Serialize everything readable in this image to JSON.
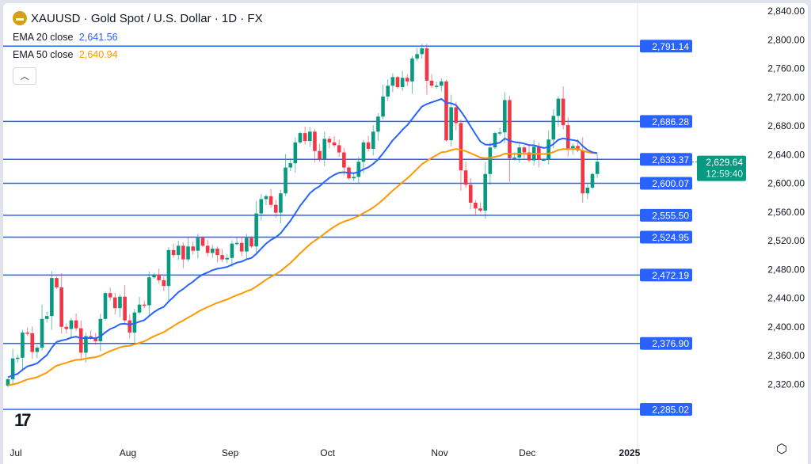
{
  "header": {
    "symbol_title": "XAUUSD · Gold Spot / U.S. Dollar · 1D · FX",
    "ema20_label": "EMA 20 close",
    "ema20_value": "2,641.56",
    "ema50_label": "EMA 50 close",
    "ema50_value": "2,640.94",
    "collapse_icon": "chevron-up-icon"
  },
  "logo": "TV",
  "colors": {
    "up": "#089981",
    "down": "#f23645",
    "ema20": "#2962ff",
    "ema50": "#ff9800",
    "level": "#2962ff",
    "price_label": "#089981"
  },
  "chart_data": {
    "type": "candlestick",
    "title": "XAUUSD · Gold Spot / U.S. Dollar · 1D · FX",
    "ylim": [
      2255,
      2850
    ],
    "y_ticks": [
      "2,840.00",
      "2,800.00",
      "2,760.00",
      "2,720.00",
      "2,680.00",
      "2,640.00",
      "2,600.00",
      "2,560.00",
      "2,520.00",
      "2,480.00",
      "2,440.00",
      "2,400.00",
      "2,360.00",
      "2,320.00"
    ],
    "y_tick_values": [
      2840,
      2800,
      2760,
      2720,
      2680,
      2640,
      2600,
      2560,
      2520,
      2480,
      2440,
      2400,
      2360,
      2320
    ],
    "x_ticks": [
      {
        "label": "Jul",
        "bar": 0
      },
      {
        "label": "Aug",
        "bar": 23
      },
      {
        "label": "Sep",
        "bar": 44
      },
      {
        "label": "Oct",
        "bar": 64
      },
      {
        "label": "Nov",
        "bar": 87
      },
      {
        "label": "Dec",
        "bar": 105
      },
      {
        "label": "2025",
        "bar": 126
      }
    ],
    "closes": [
      2327,
      2356,
      2357,
      2392,
      2391,
      2365,
      2371,
      2411,
      2415,
      2468,
      2455,
      2400,
      2397,
      2409,
      2398,
      2364,
      2387,
      2385,
      2380,
      2411,
      2447,
      2441,
      2426,
      2442,
      2409,
      2392,
      2420,
      2431,
      2430,
      2469,
      2473,
      2465,
      2457,
      2507,
      2500,
      2513,
      2494,
      2512,
      2506,
      2524,
      2513,
      2503,
      2509,
      2500,
      2494,
      2496,
      2516,
      2517,
      2505,
      2524,
      2512,
      2558,
      2578,
      2582,
      2570,
      2559,
      2586,
      2622,
      2628,
      2657,
      2670,
      2659,
      2672,
      2645,
      2634,
      2662,
      2657,
      2653,
      2643,
      2622,
      2607,
      2609,
      2630,
      2657,
      2648,
      2672,
      2693,
      2721,
      2736,
      2748,
      2734,
      2747,
      2742,
      2774,
      2780,
      2788,
      2743,
      2736,
      2736,
      2742,
      2660,
      2706,
      2684,
      2618,
      2598,
      2573,
      2565,
      2562,
      2613,
      2650,
      2670,
      2671,
      2716,
      2635,
      2636,
      2650,
      2643,
      2632,
      2651,
      2633,
      2633,
      2661,
      2694,
      2718,
      2681,
      2648,
      2652,
      2646,
      2586,
      2594,
      2613,
      2630
    ],
    "first_open": 2318,
    "ema_seed": {
      "ema20": 2330,
      "ema50": 2318
    },
    "series": [
      {
        "name": "EMA 20 close",
        "value": "2,641.56"
      },
      {
        "name": "EMA 50 close",
        "value": "2,640.94"
      }
    ],
    "levels": [
      {
        "value": 2791.14,
        "label": "2,791.14"
      },
      {
        "value": 2686.28,
        "label": "2,686.28"
      },
      {
        "value": 2633.37,
        "label": "2,633.37"
      },
      {
        "value": 2600.07,
        "label": "2,600.07"
      },
      {
        "value": 2555.5,
        "label": "2,555.50"
      },
      {
        "value": 2524.95,
        "label": "2,524.95"
      },
      {
        "value": 2472.19,
        "label": "2,472.19"
      },
      {
        "value": 2376.9,
        "label": "2,376.90"
      },
      {
        "value": 2285.02,
        "label": "2,285.02"
      }
    ],
    "last_price": {
      "value": 2629.64,
      "label": "2,629.64",
      "countdown": "12:59:40"
    }
  }
}
